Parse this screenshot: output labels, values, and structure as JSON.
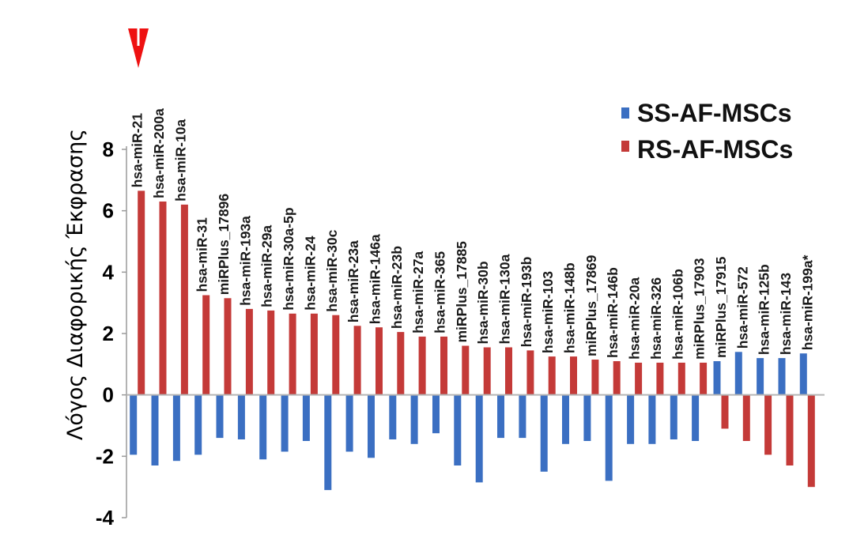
{
  "chart_data": {
    "type": "bar",
    "title": "",
    "xlabel": "",
    "ylabel": "Λόγος Διαφορικής Έκφρασης",
    "ylim": [
      -4,
      8
    ],
    "yticks": [
      8,
      6,
      4,
      2,
      0,
      -2,
      -4
    ],
    "categories": [
      "hsa-miR-21",
      "hsa-miR-200a",
      "hsa-miR-10a",
      "hsa-miR-31",
      "miRPlus_17896",
      "hsa-miR-193a",
      "hsa-miR-29a",
      "hsa-miR-30a-5p",
      "hsa-miR-24",
      "hsa-miR-30c",
      "hsa-miR-23a",
      "hsa-miR-146a",
      "hsa-miR-23b",
      "hsa-miR-27a",
      "hsa-miR-365",
      "miRPlus_17885",
      "hsa-miR-30b",
      "hsa-miR-130a",
      "hsa-miR-193b",
      "hsa-miR-103",
      "hsa-miR-148b",
      "miRPlus_17869",
      "hsa-miR-146b",
      "hsa-miR-20a",
      "hsa-miR-326",
      "hsa-miR-106b",
      "miRPlus_17903",
      "miRPlus_17915",
      "hsa-miR-572",
      "hsa-miR-125b",
      "hsa-miR-143",
      "hsa-miR-199a*"
    ],
    "series": [
      {
        "name": "SS-AF-MSCs",
        "color": "#3b6fc2",
        "values": [
          -1.95,
          -2.3,
          -2.15,
          -1.95,
          -1.4,
          -1.45,
          -2.1,
          -1.85,
          -1.5,
          -3.1,
          -1.85,
          -2.05,
          -1.45,
          -1.6,
          -1.25,
          -2.3,
          -2.85,
          -1.4,
          -1.4,
          -2.5,
          -1.6,
          -1.5,
          -2.8,
          -1.6,
          -1.6,
          -1.45,
          -1.5,
          1.1,
          1.4,
          1.2,
          1.2,
          1.35
        ]
      },
      {
        "name": "RS-AF-MSCs",
        "color": "#c43a38",
        "values": [
          6.65,
          6.3,
          6.2,
          3.25,
          3.15,
          2.8,
          2.75,
          2.65,
          2.65,
          2.6,
          2.25,
          2.2,
          2.05,
          1.9,
          1.9,
          1.6,
          1.55,
          1.55,
          1.45,
          1.25,
          1.25,
          1.15,
          1.1,
          1.05,
          1.05,
          1.05,
          1.05,
          -1.1,
          -1.5,
          -1.95,
          -2.3,
          -3.0
        ]
      }
    ],
    "legend_position": "top-right",
    "annotation": {
      "marker": "red-arrow",
      "points_to": "hsa-miR-21"
    },
    "grid": false
  }
}
